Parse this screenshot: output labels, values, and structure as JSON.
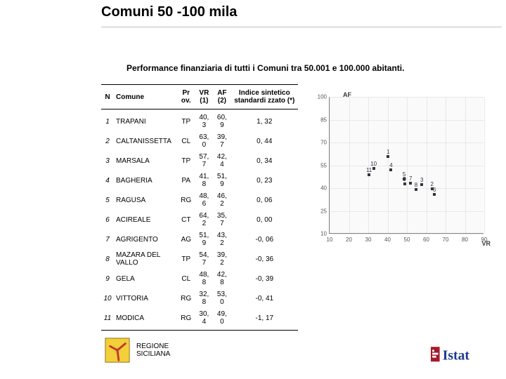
{
  "title": "Comuni 50 -100 mila",
  "subtitle": "Performance finanziaria di tutti i Comuni tra 50.001 e 100.000 abitanti.",
  "table": {
    "columns": [
      "N",
      "Comune",
      "Pr ov.",
      "VR (1)",
      "AF (2)",
      "Indice sintetico standardi zzato (*)"
    ],
    "rows": [
      [
        "1",
        "TRAPANI",
        "TP",
        "40, 3",
        "60, 9",
        "1, 32"
      ],
      [
        "2",
        "CALTANISSETTA",
        "CL",
        "63, 0",
        "39, 7",
        "0, 44"
      ],
      [
        "3",
        "MARSALA",
        "TP",
        "57, 7",
        "42, 4",
        "0, 34"
      ],
      [
        "4",
        "BAGHERIA",
        "PA",
        "41, 8",
        "51, 9",
        "0, 23"
      ],
      [
        "5",
        "RAGUSA",
        "RG",
        "48, 6",
        "46, 2",
        "0, 06"
      ],
      [
        "6",
        "ACIREALE",
        "CT",
        "64, 2",
        "35, 7",
        "0, 00"
      ],
      [
        "7",
        "AGRIGENTO",
        "AG",
        "51, 9",
        "43, 2",
        "-0, 06"
      ],
      [
        "8",
        "MAZARA DEL VALLO",
        "TP",
        "54, 7",
        "39, 2",
        "-0, 36"
      ],
      [
        "9",
        "GELA",
        "CL",
        "48, 8",
        "42, 8",
        "-0, 39"
      ],
      [
        "10",
        "VITTORIA",
        "RG",
        "32, 8",
        "53, 0",
        "-0, 41"
      ],
      [
        "11",
        "MODICA",
        "RG",
        "30, 4",
        "49, 0",
        "-1, 17"
      ]
    ]
  },
  "chart": {
    "type": "scatter",
    "xlabel": "VR",
    "ylabel": "AF",
    "xlim": [
      10,
      90
    ],
    "ylim": [
      10,
      100
    ],
    "xticks": [
      10,
      20,
      30,
      40,
      50,
      60,
      70,
      80,
      90
    ],
    "yticks": [
      10,
      25,
      40,
      55,
      70,
      85,
      100
    ],
    "background_color": "#fafafa",
    "grid_color": "#e8e8e8",
    "axis_color": "#888888",
    "point_color": "#333344",
    "points": [
      {
        "n": 1,
        "x": 40.3,
        "y": 60.9
      },
      {
        "n": 2,
        "x": 63.0,
        "y": 39.7
      },
      {
        "n": 3,
        "x": 57.7,
        "y": 42.4
      },
      {
        "n": 4,
        "x": 41.8,
        "y": 51.9
      },
      {
        "n": 5,
        "x": 48.6,
        "y": 46.2
      },
      {
        "n": 6,
        "x": 64.2,
        "y": 35.7
      },
      {
        "n": 7,
        "x": 51.9,
        "y": 43.2
      },
      {
        "n": 8,
        "x": 54.7,
        "y": 39.2
      },
      {
        "n": 9,
        "x": 48.8,
        "y": 42.8
      },
      {
        "n": 10,
        "x": 32.8,
        "y": 53.0
      },
      {
        "n": 11,
        "x": 30.4,
        "y": 49.0
      }
    ]
  },
  "footer": {
    "regione_line1": "REGIONE",
    "regione_line2": "SICILIANA"
  },
  "colors": {
    "istat_red": "#a31b2b",
    "istat_blue": "#1f3b8a",
    "sicilia_yellow": "#f3cf3a",
    "sicilia_red": "#c0392b"
  }
}
